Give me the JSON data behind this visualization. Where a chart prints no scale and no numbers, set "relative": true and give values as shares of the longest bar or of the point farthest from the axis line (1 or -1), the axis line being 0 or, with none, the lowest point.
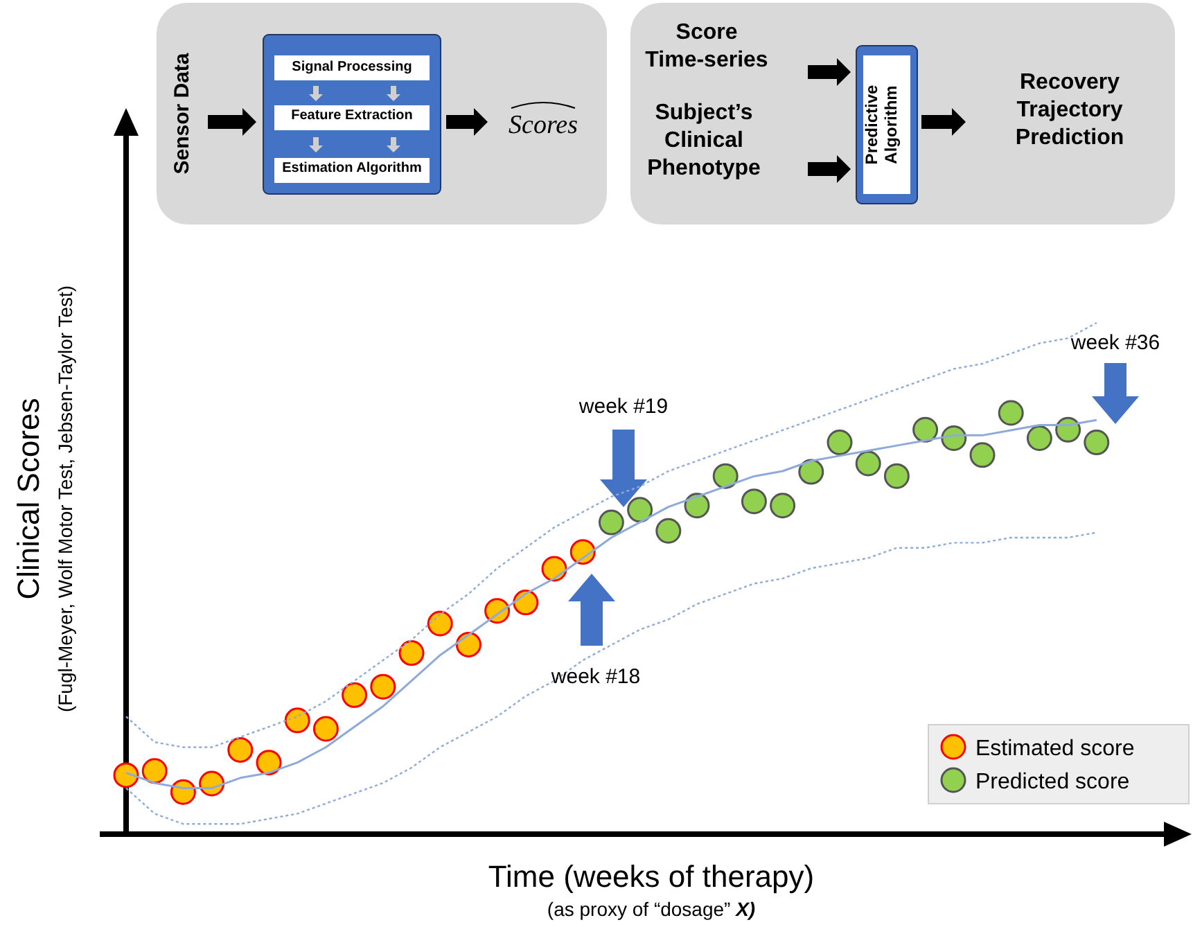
{
  "chart_data": [
    {
      "type": "line",
      "relative": true,
      "xlabel": "Time (weeks of therapy)",
      "ylabel": "Clinical Scores",
      "categories": [
        null,
        null,
        null,
        null,
        null,
        null,
        null,
        null,
        null,
        null,
        null,
        null,
        null,
        null,
        null,
        null,
        null,
        null,
        null,
        null,
        null,
        null,
        null,
        null,
        null,
        null,
        null,
        null,
        null,
        null,
        null,
        null,
        null,
        null,
        null
      ],
      "series": [
        {
          "color": "#8eaadb",
          "line_style": "solid",
          "values": [
            0.12,
            0.1,
            0.09,
            0.09,
            0.11,
            0.12,
            0.14,
            0.17,
            0.21,
            0.25,
            0.3,
            0.35,
            0.39,
            0.43,
            0.47,
            0.5,
            0.54,
            0.58,
            0.61,
            0.64,
            0.66,
            0.68,
            0.7,
            0.71,
            0.73,
            0.74,
            0.75,
            0.76,
            0.77,
            0.78,
            0.78,
            0.79,
            0.8,
            0.8,
            0.81
          ]
        },
        {
          "color": "#8eaadb",
          "line_style": "dotted",
          "values": [
            0.09,
            0.04,
            0.02,
            0.02,
            0.02,
            0.03,
            0.04,
            0.06,
            0.08,
            0.1,
            0.13,
            0.17,
            0.2,
            0.23,
            0.27,
            0.3,
            0.34,
            0.37,
            0.4,
            0.42,
            0.45,
            0.47,
            0.49,
            0.5,
            0.52,
            0.53,
            0.54,
            0.56,
            0.56,
            0.57,
            0.57,
            0.58,
            0.58,
            0.58,
            0.59
          ]
        },
        {
          "color": "#8eaadb",
          "line_style": "dotted",
          "values": [
            0.23,
            0.18,
            0.17,
            0.17,
            0.19,
            0.21,
            0.23,
            0.26,
            0.3,
            0.34,
            0.38,
            0.43,
            0.47,
            0.52,
            0.56,
            0.6,
            0.63,
            0.66,
            0.68,
            0.71,
            0.73,
            0.75,
            0.77,
            0.79,
            0.81,
            0.83,
            0.85,
            0.87,
            0.89,
            0.91,
            0.92,
            0.94,
            0.96,
            0.97,
            1.0
          ]
        }
      ],
      "annotations": [
        "Sensor Data",
        "Signal Processing",
        "Feature Extraction",
        "Estimation Algorithm",
        "Scores",
        "Score Time-series",
        "Subject’s Clinical Phenotype",
        "Predictive Algorithm",
        "Recovery Trajectory Prediction",
        "week #19",
        "week #18",
        "week #36",
        "(as proxy of “dosage” X)",
        "(Fugl-Meyer, Wolf Motor Test, Jebsen-Taylor Test)"
      ]
    },
    {
      "type": "scatter",
      "relative": true,
      "marker": "circle",
      "legend": "bottom right",
      "categories": [
        null,
        null,
        null,
        null,
        null,
        null,
        null,
        null,
        null,
        null,
        null,
        null,
        null,
        null,
        null,
        null,
        null,
        null,
        null,
        null,
        null,
        null,
        null,
        null,
        null,
        null,
        null,
        null,
        null,
        null,
        null,
        null,
        null,
        null,
        null
      ],
      "series": [
        {
          "name": "Estimated score",
          "color": "#ffc000",
          "values": [
            0.14,
            0.15,
            0.1,
            0.12,
            0.2,
            0.17,
            0.27,
            0.25,
            0.33,
            0.35,
            0.43,
            0.5,
            0.45,
            0.53,
            0.55,
            0.63,
            0.67,
            null,
            null,
            null,
            null,
            null,
            null,
            null,
            null,
            null,
            null,
            null,
            null,
            null,
            null,
            null,
            null,
            null,
            null
          ]
        },
        {
          "name": "Predicted score",
          "color": "#92d050",
          "values": [
            null,
            null,
            null,
            null,
            null,
            null,
            null,
            null,
            null,
            null,
            null,
            null,
            null,
            null,
            null,
            null,
            null,
            0.74,
            0.77,
            0.72,
            0.78,
            0.85,
            0.79,
            0.78,
            0.86,
            0.93,
            0.88,
            0.85,
            0.96,
            0.94,
            0.9,
            1.0,
            0.94,
            0.96,
            0.93
          ]
        }
      ]
    }
  ]
}
